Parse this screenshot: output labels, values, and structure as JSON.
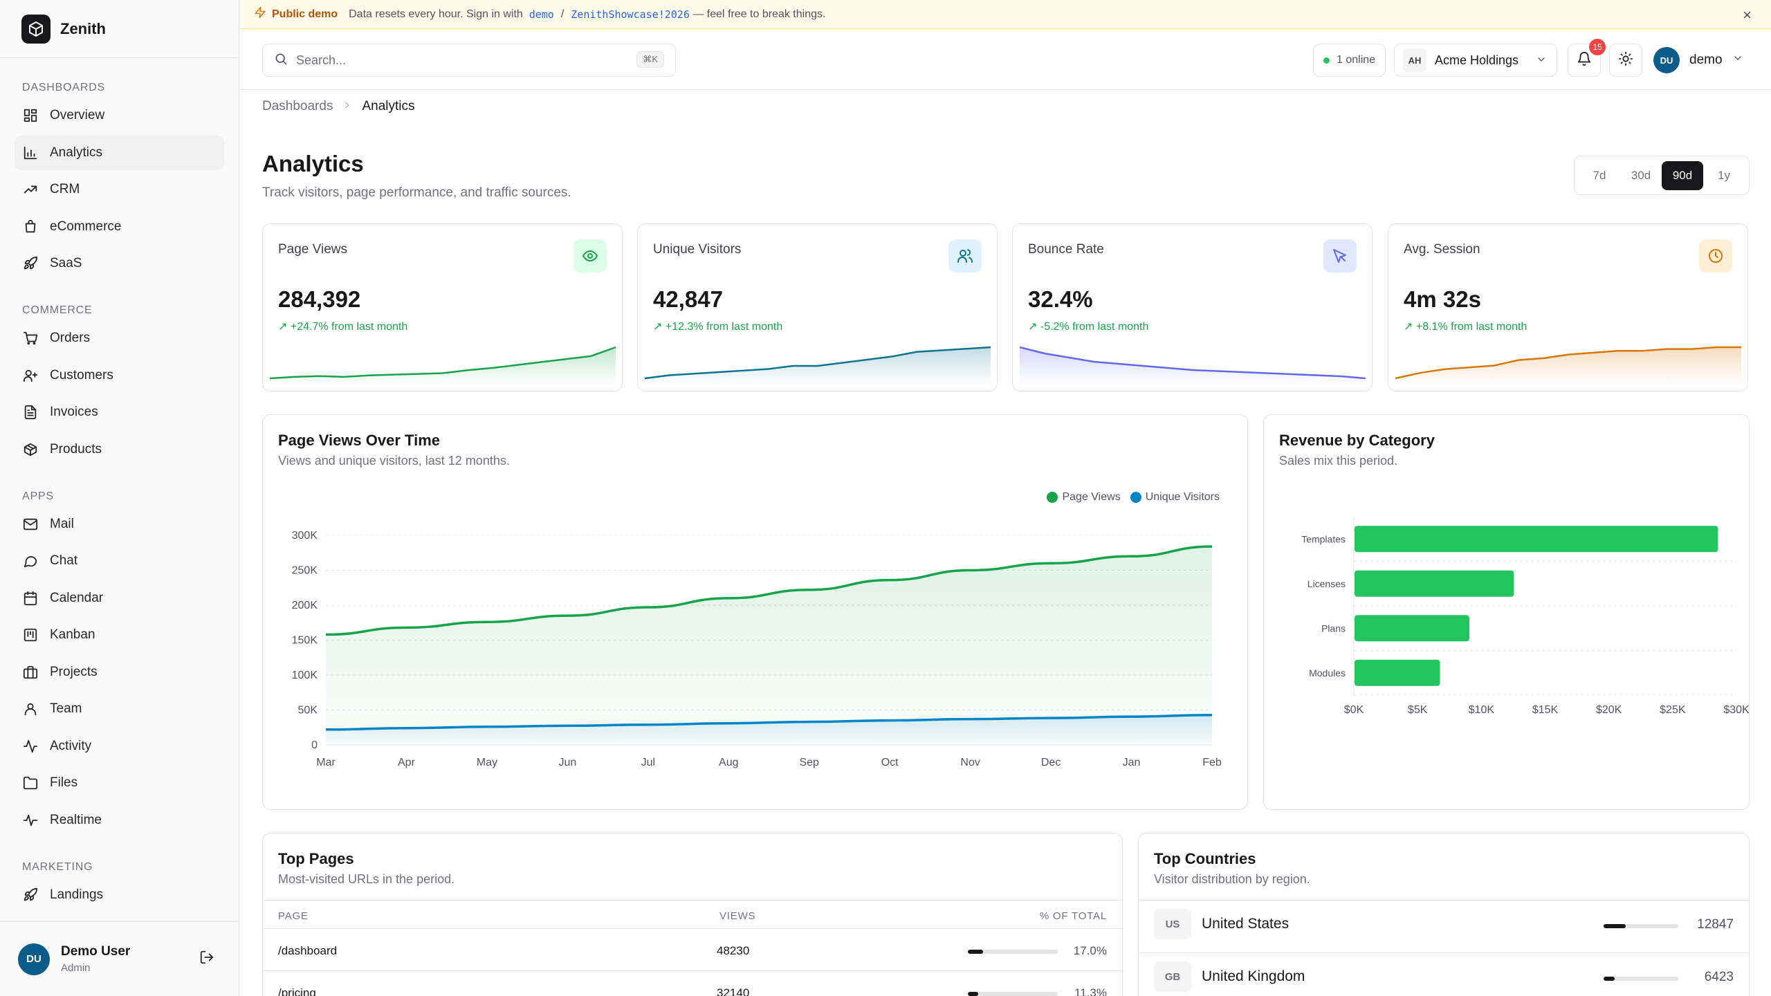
{
  "app": {
    "name": "Zenith"
  },
  "banner": {
    "tag": "Public demo",
    "text_before": "Data resets every hour. Sign in with",
    "user": "demo",
    "separator": "/",
    "password": "ZenithShowcase!2026",
    "text_after": "— feel free to break things.",
    "close": "×"
  },
  "header": {
    "search_placeholder": "Search...",
    "search_kbd": "⌘K",
    "online": "1 online",
    "org_initials": "AH",
    "org_name": "Acme Holdings",
    "notifications": "15",
    "user_initials": "DU",
    "user_name": "demo"
  },
  "sidebar": {
    "sections": [
      {
        "title": "Dashboards",
        "items": [
          {
            "label": "Overview",
            "icon": "grid-icon"
          },
          {
            "label": "Analytics",
            "icon": "bar-chart-icon",
            "active": true
          },
          {
            "label": "CRM",
            "icon": "trending-up-icon"
          },
          {
            "label": "eCommerce",
            "icon": "shopping-bag-icon"
          },
          {
            "label": "SaaS",
            "icon": "rocket-icon"
          }
        ]
      },
      {
        "title": "Commerce",
        "items": [
          {
            "label": "Orders",
            "icon": "cart-icon"
          },
          {
            "label": "Customers",
            "icon": "user-plus-icon"
          },
          {
            "label": "Invoices",
            "icon": "file-text-icon"
          },
          {
            "label": "Products",
            "icon": "package-icon"
          }
        ]
      },
      {
        "title": "Apps",
        "items": [
          {
            "label": "Mail",
            "icon": "mail-icon"
          },
          {
            "label": "Chat",
            "icon": "chat-icon"
          },
          {
            "label": "Calendar",
            "icon": "calendar-icon"
          },
          {
            "label": "Kanban",
            "icon": "kanban-icon"
          },
          {
            "label": "Projects",
            "icon": "briefcase-icon"
          },
          {
            "label": "Team",
            "icon": "user-icon"
          },
          {
            "label": "Activity",
            "icon": "activity-icon"
          },
          {
            "label": "Files",
            "icon": "folder-icon"
          },
          {
            "label": "Realtime",
            "icon": "pulse-icon"
          }
        ]
      },
      {
        "title": "Marketing",
        "items": [
          {
            "label": "Landings",
            "icon": "rocket-icon"
          }
        ]
      }
    ],
    "user": {
      "initials": "DU",
      "name": "Demo User",
      "role": "Admin"
    }
  },
  "breadcrumb": {
    "parent": "Dashboards",
    "current": "Analytics"
  },
  "page": {
    "title": "Analytics",
    "subtitle": "Track visitors, page performance, and traffic sources.",
    "ranges": [
      "7d",
      "30d",
      "90d",
      "1y"
    ],
    "active_range": "90d"
  },
  "stats": [
    {
      "label": "Page Views",
      "value": "284,392",
      "delta": "+24.7% from last month",
      "icon": "eye-icon",
      "color": "#16a34a",
      "bg": "#dcfce7",
      "trend": [
        10,
        12,
        13,
        12,
        14,
        15,
        16,
        17,
        21,
        24,
        28,
        32,
        36,
        40,
        52
      ]
    },
    {
      "label": "Unique Visitors",
      "value": "42,847",
      "delta": "+12.3% from last month",
      "icon": "users-icon",
      "color": "#0e7490",
      "bg": "#e0f2fe",
      "trend": [
        8,
        10,
        11,
        12,
        13,
        14,
        16,
        16,
        18,
        20,
        22,
        25,
        26,
        27,
        28
      ]
    },
    {
      "label": "Bounce Rate",
      "value": "32.4%",
      "delta": "-5.2% from last month",
      "icon": "cursor-icon",
      "color": "#6366f1",
      "bg": "#e0e7ff",
      "trend": [
        48,
        42,
        38,
        34,
        32,
        30,
        28,
        26,
        25,
        24,
        23,
        22,
        21,
        20,
        18
      ]
    },
    {
      "label": "Avg. Session",
      "value": "4m 32s",
      "delta": "+8.1% from last month",
      "icon": "clock-icon",
      "color": "#d97706",
      "bg": "#ffedd5",
      "trend": [
        10,
        16,
        20,
        22,
        24,
        30,
        32,
        36,
        38,
        40,
        40,
        42,
        42,
        44,
        44
      ]
    }
  ],
  "pageviews_panel": {
    "title": "Page Views Over Time",
    "subtitle": "Views and unique visitors, last 12 months."
  },
  "revenue_panel": {
    "title": "Revenue by Category",
    "subtitle": "Sales mix this period."
  },
  "chart_data": [
    {
      "type": "area",
      "x": [
        "Mar",
        "Apr",
        "May",
        "Jun",
        "Jul",
        "Aug",
        "Sep",
        "Oct",
        "Nov",
        "Dec",
        "Jan",
        "Feb"
      ],
      "ylim": [
        0,
        300000
      ],
      "yticks": [
        "0",
        "50K",
        "100K",
        "150K",
        "200K",
        "250K",
        "300K"
      ],
      "legend_position": "top-right",
      "grid": true,
      "series": [
        {
          "name": "Page Views",
          "color": "#16a34a",
          "values": [
            158000,
            168000,
            176000,
            185000,
            197000,
            210000,
            222000,
            236000,
            250000,
            260000,
            270000,
            284000
          ]
        },
        {
          "name": "Unique Visitors",
          "color": "#0284c7",
          "values": [
            22000,
            24000,
            26000,
            27500,
            29000,
            31000,
            33000,
            35000,
            37000,
            38500,
            40500,
            42800
          ]
        }
      ]
    },
    {
      "type": "bar",
      "orientation": "horizontal",
      "categories": [
        "Templates",
        "Licenses",
        "Plans",
        "Modules"
      ],
      "values": [
        28500,
        12500,
        9000,
        6700
      ],
      "xlim": [
        0,
        30000
      ],
      "xticks": [
        "$0K",
        "$5K",
        "$10K",
        "$15K",
        "$20K",
        "$25K",
        "$30K"
      ],
      "color": "#22c55e",
      "grid": true
    }
  ],
  "top_pages": {
    "title": "Top Pages",
    "subtitle": "Most-visited URLs in the period.",
    "columns": [
      "PAGE",
      "VIEWS",
      "% OF TOTAL"
    ],
    "rows": [
      {
        "page": "/dashboard",
        "views": "48230",
        "pct": "17.0%",
        "share": 0.17
      },
      {
        "page": "/pricing",
        "views": "32140",
        "pct": "11.3%",
        "share": 0.113
      }
    ]
  },
  "top_countries": {
    "title": "Top Countries",
    "subtitle": "Visitor distribution by region.",
    "rows": [
      {
        "code": "US",
        "name": "United States",
        "count": "12847",
        "share": 0.3
      },
      {
        "code": "GB",
        "name": "United Kingdom",
        "count": "6423",
        "share": 0.15
      }
    ]
  }
}
